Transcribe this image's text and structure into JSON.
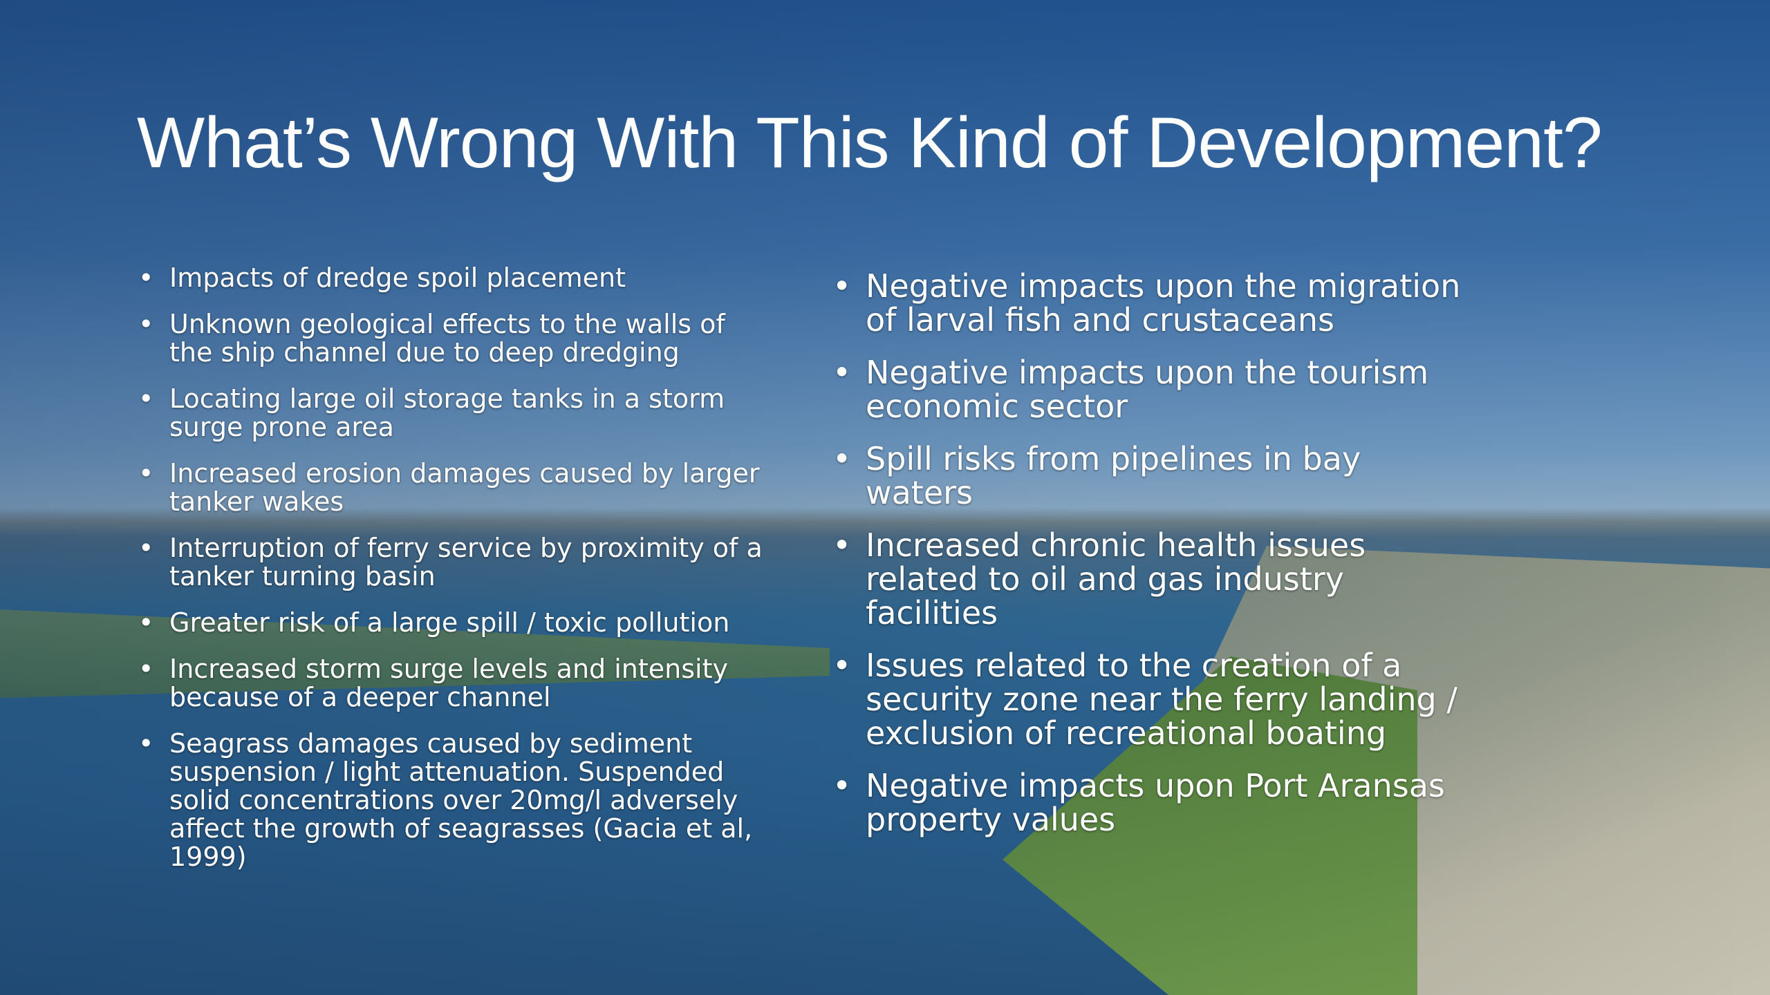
{
  "slide": {
    "title": "What’s Wrong With This Kind of Development?",
    "left_items": [
      "Impacts of dredge spoil placement",
      "Unknown geological effects to the walls of the ship channel due to deep dredging",
      "Locating large oil storage tanks in a storm surge prone area",
      "Increased erosion damages caused by larger tanker wakes",
      "Interruption of ferry service by proximity of a tanker turning basin",
      "Greater risk of a large spill / toxic pollution",
      "Increased storm surge levels and intensity because of a deeper channel",
      "Seagrass damages caused by sediment suspension / light attenuation. Suspended solid concentrations over 20mg/l adversely affect the growth of seagrasses (Gacia et al, 1999)"
    ],
    "right_items": [
      "Negative impacts upon the migration of larval fish and crustaceans",
      "Negative impacts upon the tourism economic sector",
      "Spill risks from pipelines in bay waters",
      "Increased chronic health issues related to oil and gas industry facilities",
      "Issues related to the creation of a security zone near the ferry landing / exclusion of recreational boating",
      "Negative impacts upon Port Aransas property values"
    ]
  }
}
